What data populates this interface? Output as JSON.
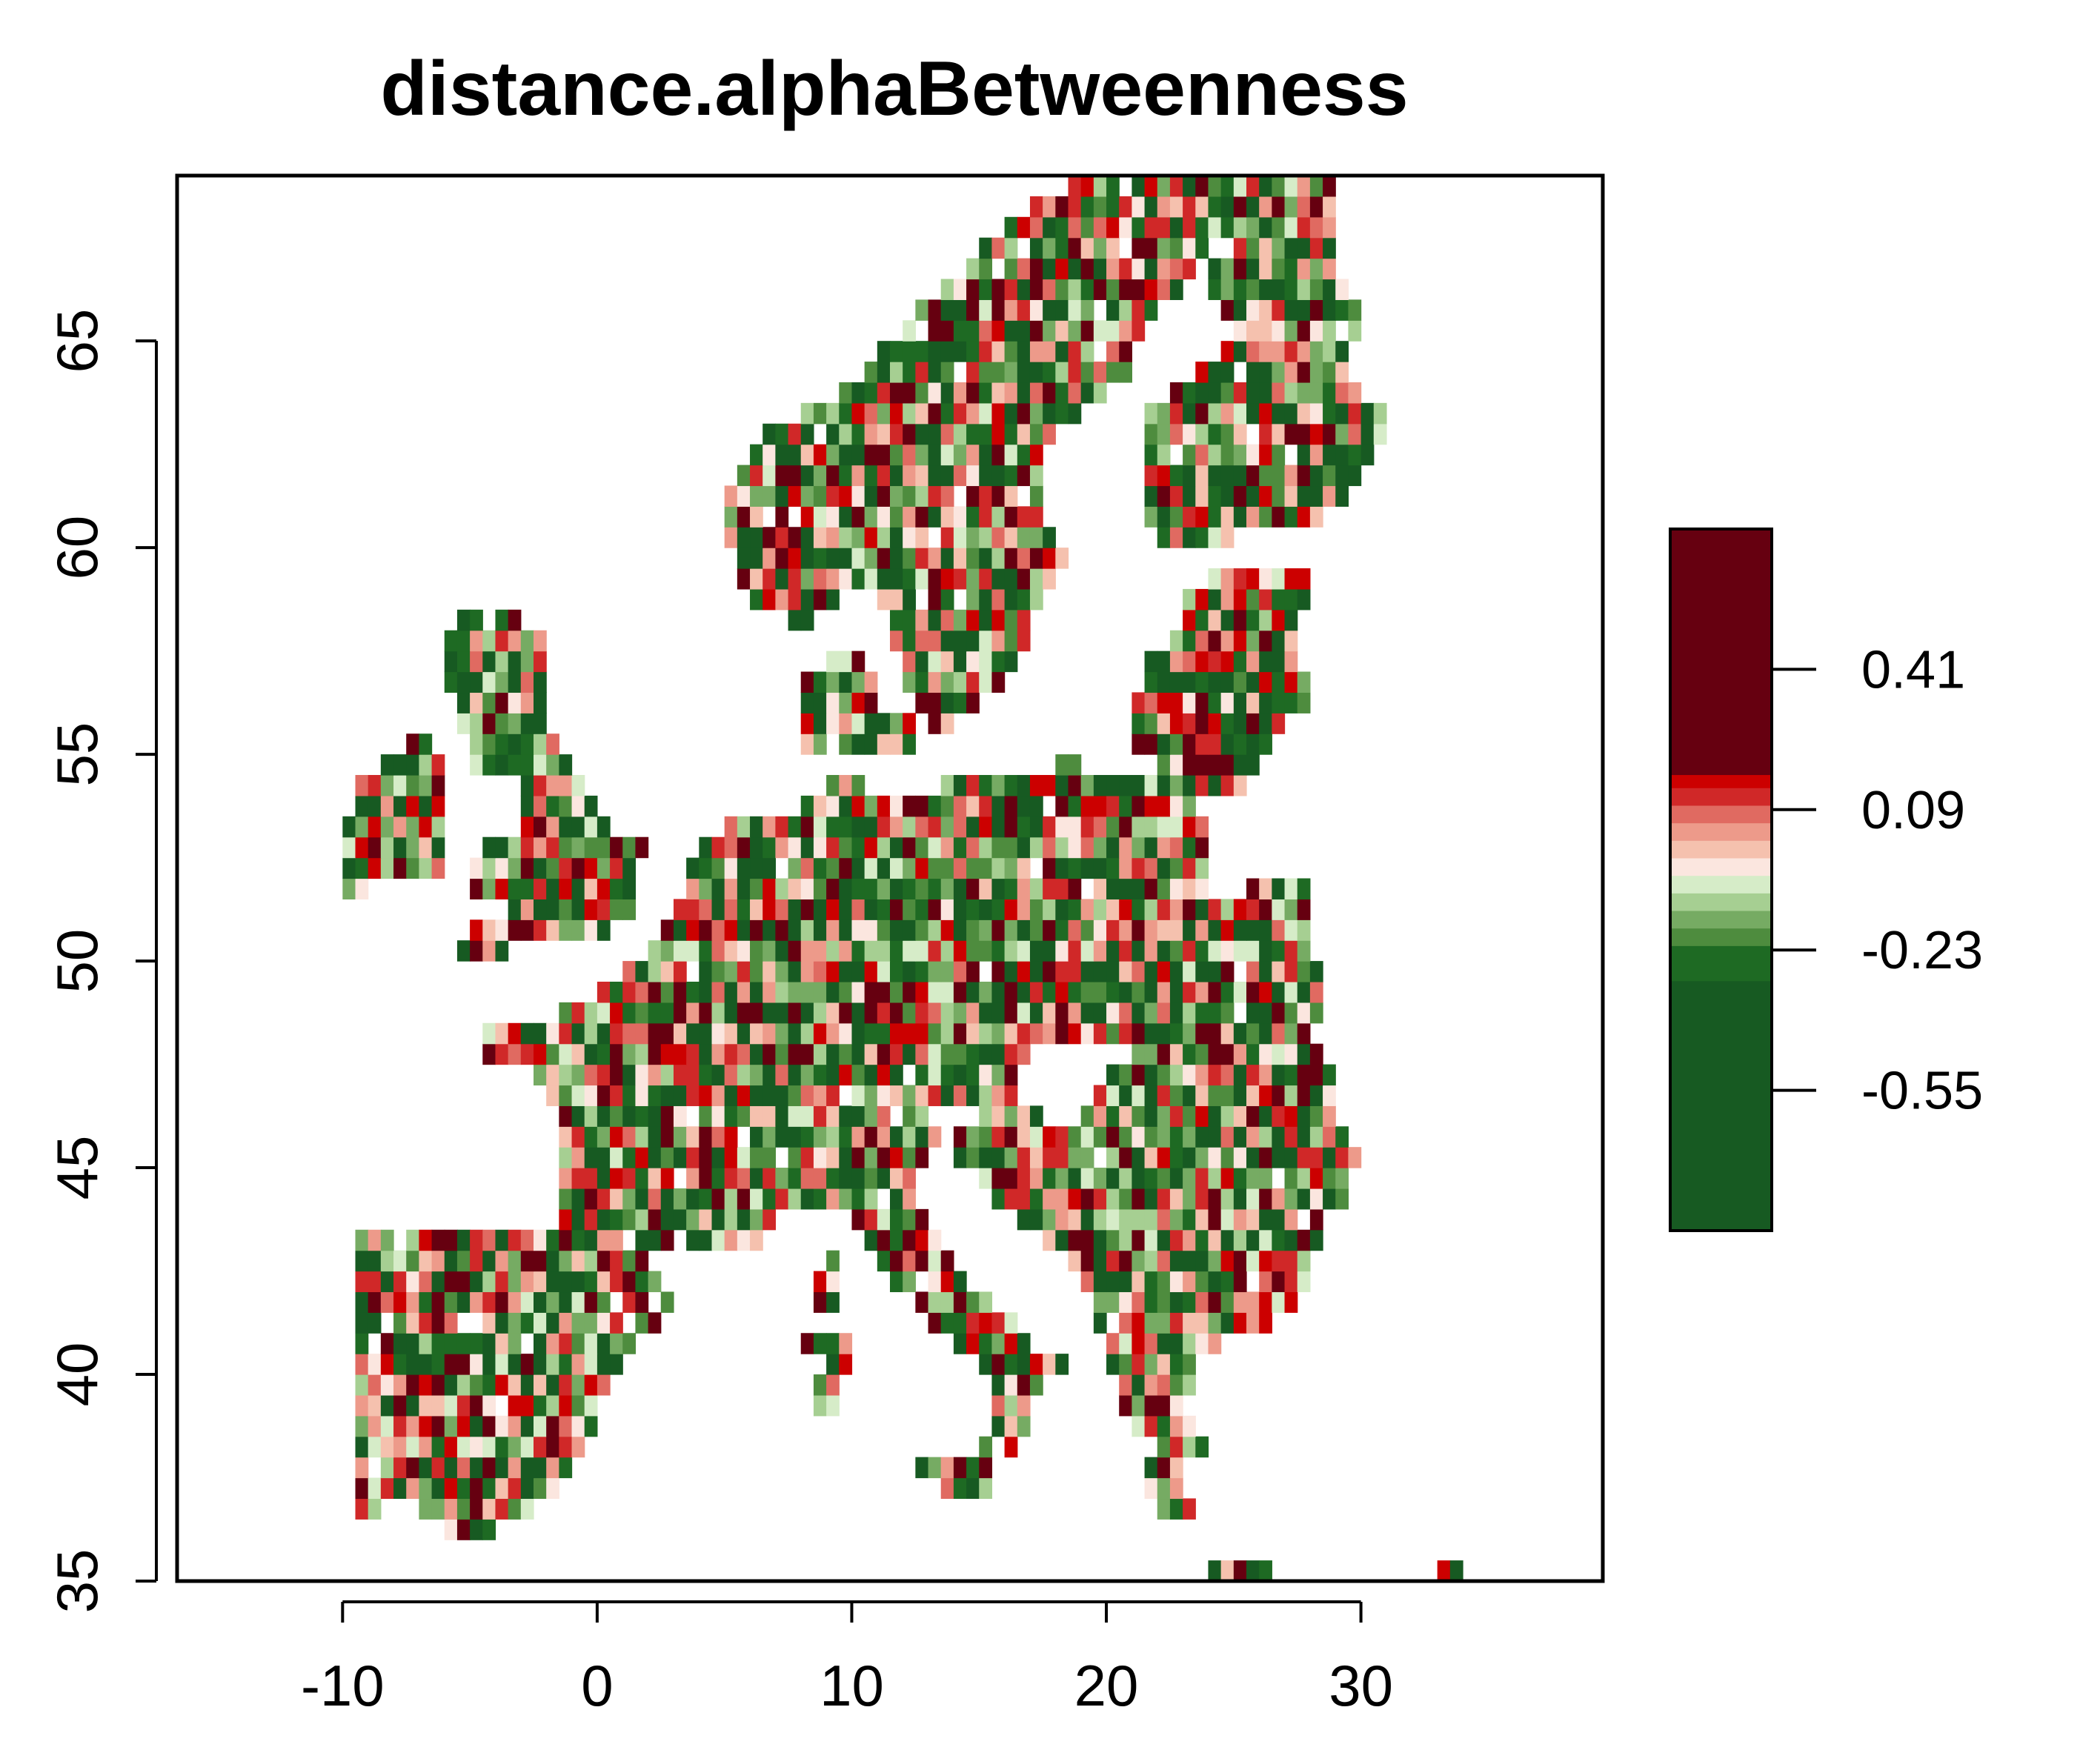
{
  "title": "distance.alphaBetweenness",
  "chart_data": {
    "type": "heatmap",
    "title": "distance.alphaBetweenness",
    "xlabel": "",
    "ylabel": "",
    "xlim": [
      -16.5,
      39.5
    ],
    "ylim": [
      35,
      69
    ],
    "x_ticks": [
      "-10",
      "0",
      "10",
      "20",
      "30"
    ],
    "y_ticks": [
      "35",
      "40",
      "45",
      "50",
      "55",
      "60",
      "65"
    ],
    "legend": {
      "placement": "right",
      "range": [
        -0.87,
        0.73
      ],
      "ticks": [
        "0.41",
        "0.09",
        "-0.23",
        "-0.55"
      ],
      "bands": [
        {
          "from": -0.87,
          "to": -0.3,
          "color": "#175a22"
        },
        {
          "from": -0.3,
          "to": -0.22,
          "color": "#1e6a23"
        },
        {
          "from": -0.22,
          "to": -0.18,
          "color": "#4e8c3e"
        },
        {
          "from": -0.18,
          "to": -0.14,
          "color": "#76ab63"
        },
        {
          "from": -0.14,
          "to": -0.1,
          "color": "#a6cf92"
        },
        {
          "from": -0.1,
          "to": -0.06,
          "color": "#d6ecc8"
        },
        {
          "from": -0.06,
          "to": -0.02,
          "color": "#fbe6df"
        },
        {
          "from": -0.02,
          "to": 0.02,
          "color": "#f5c1ae"
        },
        {
          "from": 0.02,
          "to": 0.06,
          "color": "#ed9a8a"
        },
        {
          "from": 0.06,
          "to": 0.1,
          "color": "#e06a61"
        },
        {
          "from": 0.1,
          "to": 0.14,
          "color": "#d02828"
        },
        {
          "from": 0.14,
          "to": 0.17,
          "color": "#cc0000"
        },
        {
          "from": 0.17,
          "to": 0.73,
          "color": "#660010"
        }
      ]
    },
    "cell_size_deg": 0.5,
    "regions": [
      {
        "name": "Iberia",
        "polygon": [
          [
            -9.5,
            36.5
          ],
          [
            -9.5,
            43.5
          ],
          [
            -8,
            43.7
          ],
          [
            -2,
            43.6
          ],
          [
            3,
            42.4
          ],
          [
            3.3,
            41.8
          ],
          [
            1,
            40.5
          ],
          [
            0,
            39
          ],
          [
            -0.5,
            38
          ],
          [
            -2,
            36.6
          ],
          [
            -5.5,
            36
          ],
          [
            -7.5,
            37
          ]
        ]
      },
      {
        "name": "France-Benelux-Germany-CentralEurope",
        "polygon": [
          [
            -4.8,
            48.4
          ],
          [
            -1.5,
            48.7
          ],
          [
            1.5,
            50
          ],
          [
            3,
            51.3
          ],
          [
            4.5,
            53.2
          ],
          [
            8.5,
            53.8
          ],
          [
            9.5,
            54.8
          ],
          [
            11,
            54
          ],
          [
            14,
            54.3
          ],
          [
            18.5,
            54.8
          ],
          [
            23.5,
            54.3
          ],
          [
            24,
            53
          ],
          [
            24,
            51
          ],
          [
            23,
            49.5
          ],
          [
            22.5,
            48
          ],
          [
            20,
            48.2
          ],
          [
            17,
            48
          ],
          [
            16.5,
            46.5
          ],
          [
            13.5,
            46.5
          ],
          [
            12,
            46
          ],
          [
            10,
            46.2
          ],
          [
            7,
            45.9
          ],
          [
            7.6,
            44
          ],
          [
            6,
            43.1
          ],
          [
            3,
            43.3
          ],
          [
            1.5,
            42.6
          ],
          [
            -1.8,
            43.4
          ],
          [
            -1.2,
            46
          ],
          [
            -2.2,
            47.2
          ],
          [
            -4.5,
            47.8
          ]
        ]
      },
      {
        "name": "Balkans-Romania",
        "polygon": [
          [
            13.6,
            45.6
          ],
          [
            16,
            46.6
          ],
          [
            18.5,
            46
          ],
          [
            21.5,
            48.3
          ],
          [
            26,
            48.4
          ],
          [
            28.5,
            48.2
          ],
          [
            29,
            46.5
          ],
          [
            30,
            45.5
          ],
          [
            29.6,
            44.5
          ],
          [
            28.5,
            43.7
          ],
          [
            28,
            42
          ],
          [
            26,
            41
          ],
          [
            24,
            40.6
          ],
          [
            23,
            40.2
          ],
          [
            21,
            39.5
          ],
          [
            20,
            40.5
          ],
          [
            19.5,
            42
          ],
          [
            18,
            43
          ],
          [
            16,
            44
          ],
          [
            14.5,
            45
          ]
        ]
      },
      {
        "name": "Greece",
        "polygon": [
          [
            20.2,
            39.6
          ],
          [
            21.8,
            38.2
          ],
          [
            21.5,
            37
          ],
          [
            22.5,
            36.4
          ],
          [
            23.3,
            36.6
          ],
          [
            23,
            38
          ],
          [
            24,
            38.3
          ],
          [
            23,
            39
          ],
          [
            23.5,
            40.3
          ],
          [
            22.5,
            40.5
          ],
          [
            21,
            40.2
          ]
        ]
      },
      {
        "name": "Italy",
        "polygon": [
          [
            7.1,
            45.9
          ],
          [
            10,
            46.7
          ],
          [
            12.5,
            46.6
          ],
          [
            13.8,
            45.8
          ],
          [
            12.3,
            45
          ],
          [
            12.6,
            44
          ],
          [
            14.5,
            42.2
          ],
          [
            16,
            41.4
          ],
          [
            18.4,
            40.2
          ],
          [
            17.2,
            39.4
          ],
          [
            16.6,
            38.3
          ],
          [
            15.7,
            38
          ],
          [
            15.6,
            40
          ],
          [
            14,
            40.8
          ],
          [
            12.3,
            41.8
          ],
          [
            10.5,
            43
          ],
          [
            9.8,
            44.1
          ],
          [
            8,
            44
          ],
          [
            7.5,
            44.2
          ]
        ]
      },
      {
        "name": "Sicily",
        "polygon": [
          [
            12.4,
            38.1
          ],
          [
            15.6,
            38.3
          ],
          [
            15.1,
            36.7
          ],
          [
            12.6,
            37.6
          ]
        ]
      },
      {
        "name": "Sardinia",
        "polygon": [
          [
            8.2,
            41
          ],
          [
            9.8,
            41.2
          ],
          [
            9.7,
            39.1
          ],
          [
            8.5,
            38.9
          ],
          [
            8.4,
            40
          ]
        ]
      },
      {
        "name": "Corsica",
        "polygon": [
          [
            8.6,
            42.4
          ],
          [
            9.4,
            43
          ],
          [
            9.6,
            42
          ],
          [
            9.2,
            41.4
          ],
          [
            8.7,
            41.7
          ]
        ]
      },
      {
        "name": "Britain",
        "polygon": [
          [
            -5.8,
            50
          ],
          [
            1.6,
            50.9
          ],
          [
            1.8,
            52.8
          ],
          [
            0,
            53.5
          ],
          [
            -1.5,
            55.3
          ],
          [
            -2,
            56
          ],
          [
            -2,
            57.7
          ],
          [
            -3.5,
            58.6
          ],
          [
            -5,
            58.6
          ],
          [
            -6,
            57.5
          ],
          [
            -5.6,
            56
          ],
          [
            -4.8,
            54.7
          ],
          [
            -3,
            54.3
          ],
          [
            -3,
            53.3
          ],
          [
            -4.5,
            52.8
          ],
          [
            -5.2,
            51.7
          ],
          [
            -3.5,
            51.3
          ],
          [
            -5.5,
            50.6
          ]
        ]
      },
      {
        "name": "Ireland",
        "polygon": [
          [
            -10,
            51.6
          ],
          [
            -6.2,
            52.1
          ],
          [
            -5.8,
            54
          ],
          [
            -5.9,
            55.2
          ],
          [
            -7.5,
            55.4
          ],
          [
            -8.5,
            54.6
          ],
          [
            -9.8,
            54
          ],
          [
            -10.2,
            52.5
          ]
        ]
      },
      {
        "name": "Denmark",
        "polygon": [
          [
            8.1,
            55.2
          ],
          [
            8.2,
            57.1
          ],
          [
            10.4,
            57.6
          ],
          [
            11,
            56.3
          ],
          [
            12.6,
            55.7
          ],
          [
            12.2,
            54.8
          ],
          [
            9.7,
            54.8
          ]
        ]
      },
      {
        "name": "Scandinavia",
        "polygon": [
          [
            5.3,
            59
          ],
          [
            5.2,
            61.5
          ],
          [
            7,
            63
          ],
          [
            9.5,
            63.8
          ],
          [
            11.5,
            65
          ],
          [
            14,
            66.5
          ],
          [
            16,
            68
          ],
          [
            20,
            69.2
          ],
          [
            26,
            70
          ],
          [
            29,
            69.7
          ],
          [
            28.5,
            68.5
          ],
          [
            25,
            68.1
          ],
          [
            23,
            66
          ],
          [
            21.5,
            65.5
          ],
          [
            21,
            64
          ],
          [
            19,
            63.4
          ],
          [
            17.5,
            62.3
          ],
          [
            17.3,
            60.9
          ],
          [
            18.6,
            60
          ],
          [
            17.5,
            58.9
          ],
          [
            16.5,
            57
          ],
          [
            14,
            55.5
          ],
          [
            13,
            55.4
          ],
          [
            11.6,
            57.7
          ],
          [
            10.6,
            59.3
          ],
          [
            8,
            58.1
          ]
        ]
      },
      {
        "name": "Finland",
        "polygon": [
          [
            21.5,
            60.5
          ],
          [
            21.3,
            61.8
          ],
          [
            21.5,
            63.2
          ],
          [
            23.5,
            64.3
          ],
          [
            25,
            65
          ],
          [
            24.4,
            65.8
          ],
          [
            23.9,
            66.5
          ],
          [
            25,
            68.2
          ],
          [
            27.5,
            68.8
          ],
          [
            29,
            69.2
          ],
          [
            28.8,
            67
          ],
          [
            30,
            65.5
          ],
          [
            29.5,
            64
          ],
          [
            31.3,
            63
          ],
          [
            30,
            61.5
          ],
          [
            28,
            60.6
          ],
          [
            26,
            60.4
          ],
          [
            23,
            59.9
          ]
        ]
      },
      {
        "name": "Baltics",
        "polygon": [
          [
            21,
            55.8
          ],
          [
            21.4,
            57.3
          ],
          [
            22.5,
            57.8
          ],
          [
            23.5,
            59.2
          ],
          [
            26,
            59.6
          ],
          [
            28,
            59.4
          ],
          [
            27.5,
            57.6
          ],
          [
            28.2,
            56.2
          ],
          [
            26.6,
            55.6
          ],
          [
            26,
            54.4
          ],
          [
            23.5,
            53.9
          ],
          [
            22.5,
            54.3
          ],
          [
            21.2,
            55.2
          ]
        ]
      },
      {
        "name": "Ukraine-west",
        "polygon": [
          [
            22.5,
            48.5
          ],
          [
            23,
            51
          ],
          [
            24,
            51.5
          ],
          [
            26,
            51.9
          ],
          [
            28,
            52
          ],
          [
            28.5,
            48.5
          ],
          [
            27,
            48
          ],
          [
            24.5,
            47.8
          ]
        ]
      },
      {
        "name": "Crete",
        "polygon": [
          [
            23.5,
            35.3
          ],
          [
            26.3,
            35.1
          ],
          [
            26.2,
            35.6
          ],
          [
            23.6,
            35.6
          ]
        ]
      },
      {
        "name": "Cyprus",
        "polygon": [
          [
            32.3,
            34.8
          ],
          [
            34.2,
            35.1
          ],
          [
            33.5,
            35.4
          ]
        ]
      }
    ]
  }
}
